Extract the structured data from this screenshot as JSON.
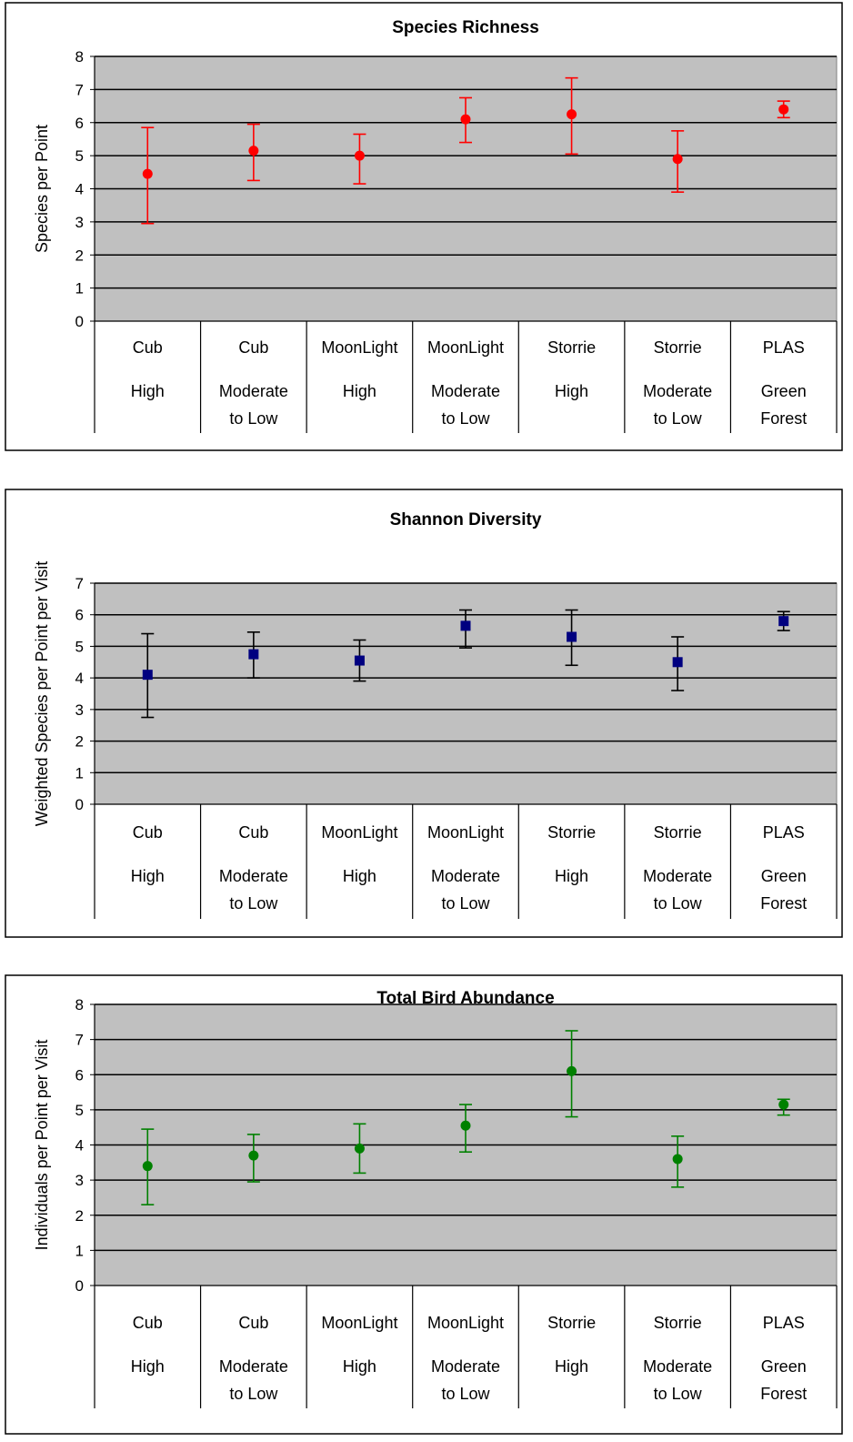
{
  "categories": [
    [
      "Cub",
      "High",
      ""
    ],
    [
      "Cub",
      "Moderate",
      "to Low"
    ],
    [
      "MoonLight",
      "High",
      ""
    ],
    [
      "MoonLight",
      "Moderate",
      "to Low"
    ],
    [
      "Storrie",
      "High",
      ""
    ],
    [
      "Storrie",
      "Moderate",
      "to Low"
    ],
    [
      "PLAS",
      "Green",
      "Forest"
    ]
  ],
  "chart_data": [
    {
      "type": "scatter",
      "title": "Species Richness",
      "ylabel": "Species per Point",
      "xlabel": "",
      "ylim": [
        0,
        8
      ],
      "yticks": [
        0,
        1,
        2,
        3,
        4,
        5,
        6,
        7,
        8
      ],
      "grid": true,
      "legend": "none",
      "marker": "circle",
      "color": "#ff0000",
      "errorbar_color": "#ff0000",
      "plot_bg": "#c0c0c0",
      "values": [
        4.45,
        5.15,
        5.0,
        6.1,
        6.25,
        4.9,
        6.4
      ],
      "error_low": [
        2.95,
        4.25,
        4.15,
        5.4,
        5.05,
        3.9,
        6.15
      ],
      "error_high": [
        5.85,
        5.95,
        5.65,
        6.75,
        7.35,
        5.75,
        6.65
      ]
    },
    {
      "type": "scatter",
      "title": "Shannon Diversity",
      "ylabel": "Weighted Species per Point per Visit",
      "xlabel": "",
      "ylim": [
        0,
        7
      ],
      "yticks": [
        0,
        1,
        2,
        3,
        4,
        5,
        6,
        7
      ],
      "grid": true,
      "legend": "none",
      "marker": "square",
      "color": "#000080",
      "errorbar_color": "#000000",
      "plot_bg": "#c0c0c0",
      "values": [
        4.1,
        4.75,
        4.55,
        5.65,
        5.3,
        4.5,
        5.8
      ],
      "error_low": [
        2.75,
        4.0,
        3.9,
        4.95,
        4.4,
        3.6,
        5.5
      ],
      "error_high": [
        5.4,
        5.45,
        5.2,
        6.15,
        6.15,
        5.3,
        6.1
      ]
    },
    {
      "type": "scatter",
      "title": "Total Bird Abundance",
      "ylabel": "Individuals per Point per Visit",
      "xlabel": "",
      "ylim": [
        0,
        8
      ],
      "yticks": [
        0,
        1,
        2,
        3,
        4,
        5,
        6,
        7,
        8
      ],
      "grid": true,
      "legend": "none",
      "marker": "circle",
      "color": "#008000",
      "errorbar_color": "#008000",
      "plot_bg": "#c0c0c0",
      "values": [
        3.4,
        3.7,
        3.9,
        4.55,
        6.1,
        3.6,
        5.15
      ],
      "error_low": [
        2.3,
        2.95,
        3.2,
        3.8,
        4.8,
        2.8,
        4.85
      ],
      "error_high": [
        4.45,
        4.3,
        4.6,
        5.15,
        7.25,
        4.25,
        5.3
      ]
    }
  ]
}
